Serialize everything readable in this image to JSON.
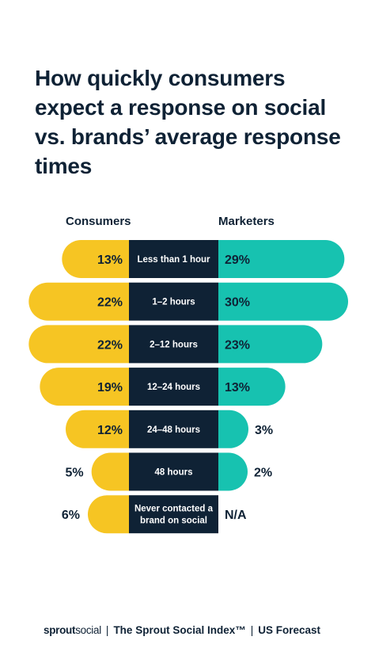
{
  "title": "How quickly consumers expect a response on social vs. brands’ average response times",
  "headers": {
    "left": "Consumers",
    "right": "Marketers"
  },
  "colors": {
    "consumers": "#f6c523",
    "marketers": "#17c2b0",
    "center": "#0f2235",
    "text": "#0f2235"
  },
  "footer": {
    "brand_bold": "sprout",
    "brand_light": "social",
    "separator": "|",
    "index": "The Sprout Social Index™",
    "region": "US Forecast"
  },
  "chart_data": {
    "type": "bar",
    "categories": [
      "Less than 1 hour",
      "1–2 hours",
      "2–12 hours",
      "12–24 hours",
      "24–48 hours",
      "48 hours",
      "Never contacted a brand on social"
    ],
    "series": [
      {
        "name": "Consumers",
        "values": [
          13,
          22,
          22,
          19,
          12,
          5,
          6
        ],
        "labels": [
          "13%",
          "22%",
          "22%",
          "19%",
          "12%",
          "5%",
          "6%"
        ]
      },
      {
        "name": "Marketers",
        "values": [
          29,
          30,
          23,
          13,
          3,
          2,
          null
        ],
        "labels": [
          "29%",
          "30%",
          "23%",
          "13%",
          "3%",
          "2%",
          "N/A"
        ]
      }
    ]
  }
}
